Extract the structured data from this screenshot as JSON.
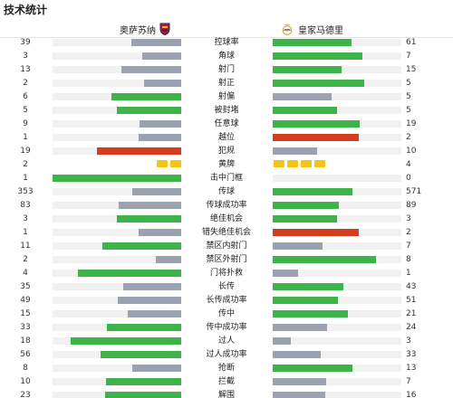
{
  "title": "技术统计",
  "home": {
    "name": "奥萨苏纳"
  },
  "away": {
    "name": "皇家马德里"
  },
  "colors": {
    "green": "#3db34a",
    "gray": "#9aa1b1",
    "red": "#d63d1e",
    "yellow": "#f6c416"
  },
  "stats": [
    {
      "label": "控球率",
      "home": "39",
      "away": "61",
      "home_pct": 0.39,
      "away_pct": 0.61,
      "home_color": "gray",
      "away_color": "green"
    },
    {
      "label": "角球",
      "home": "3",
      "away": "7",
      "home_pct": 0.3,
      "away_pct": 0.7,
      "home_color": "gray",
      "away_color": "green"
    },
    {
      "label": "射门",
      "home": "13",
      "away": "15",
      "home_pct": 0.464,
      "away_pct": 0.536,
      "home_color": "gray",
      "away_color": "green"
    },
    {
      "label": "射正",
      "home": "2",
      "away": "5",
      "home_pct": 0.286,
      "away_pct": 0.714,
      "home_color": "gray",
      "away_color": "green"
    },
    {
      "label": "射偏",
      "home": "6",
      "away": "5",
      "home_pct": 0.545,
      "away_pct": 0.455,
      "home_color": "green",
      "away_color": "gray"
    },
    {
      "label": "被封堵",
      "home": "5",
      "away": "5",
      "home_pct": 0.5,
      "away_pct": 0.5,
      "home_color": "green",
      "away_color": "green"
    },
    {
      "label": "任意球",
      "home": "9",
      "away": "19",
      "home_pct": 0.321,
      "away_pct": 0.679,
      "home_color": "gray",
      "away_color": "green"
    },
    {
      "label": "越位",
      "home": "1",
      "away": "2",
      "home_pct": 0.333,
      "away_pct": 0.667,
      "home_color": "gray",
      "away_color": "red"
    },
    {
      "label": "犯规",
      "home": "19",
      "away": "10",
      "home_pct": 0.655,
      "away_pct": 0.345,
      "home_color": "red",
      "away_color": "gray"
    },
    {
      "label": "黄牌",
      "home": "2",
      "away": "4",
      "home_cards": 2,
      "away_cards": 4
    },
    {
      "label": "击中门框",
      "home": "1",
      "away": "0",
      "home_pct": 1.0,
      "away_pct": 0.0,
      "home_color": "green",
      "away_color": "gray"
    },
    {
      "label": "传球",
      "home": "353",
      "away": "571",
      "home_pct": 0.382,
      "away_pct": 0.618,
      "home_color": "gray",
      "away_color": "green"
    },
    {
      "label": "传球成功率",
      "home": "83",
      "away": "89",
      "home_pct": 0.483,
      "away_pct": 0.517,
      "home_color": "gray",
      "away_color": "green"
    },
    {
      "label": "绝佳机会",
      "home": "3",
      "away": "3",
      "home_pct": 0.5,
      "away_pct": 0.5,
      "home_color": "green",
      "away_color": "green"
    },
    {
      "label": "错失绝佳机会",
      "home": "1",
      "away": "2",
      "home_pct": 0.333,
      "away_pct": 0.667,
      "home_color": "gray",
      "away_color": "red"
    },
    {
      "label": "禁区内射门",
      "home": "11",
      "away": "7",
      "home_pct": 0.611,
      "away_pct": 0.389,
      "home_color": "green",
      "away_color": "gray"
    },
    {
      "label": "禁区外射门",
      "home": "2",
      "away": "8",
      "home_pct": 0.2,
      "away_pct": 0.8,
      "home_color": "gray",
      "away_color": "green"
    },
    {
      "label": "门将扑救",
      "home": "4",
      "away": "1",
      "home_pct": 0.8,
      "away_pct": 0.2,
      "home_color": "green",
      "away_color": "gray"
    },
    {
      "label": "长传",
      "home": "35",
      "away": "43",
      "home_pct": 0.449,
      "away_pct": 0.551,
      "home_color": "gray",
      "away_color": "green"
    },
    {
      "label": "长传成功率",
      "home": "49",
      "away": "51",
      "home_pct": 0.49,
      "away_pct": 0.51,
      "home_color": "gray",
      "away_color": "green"
    },
    {
      "label": "传中",
      "home": "15",
      "away": "21",
      "home_pct": 0.417,
      "away_pct": 0.583,
      "home_color": "gray",
      "away_color": "green"
    },
    {
      "label": "传中成功率",
      "home": "33",
      "away": "24",
      "home_pct": 0.579,
      "away_pct": 0.421,
      "home_color": "green",
      "away_color": "gray"
    },
    {
      "label": "过人",
      "home": "18",
      "away": "3",
      "home_pct": 0.857,
      "away_pct": 0.143,
      "home_color": "green",
      "away_color": "gray"
    },
    {
      "label": "过人成功率",
      "home": "56",
      "away": "33",
      "home_pct": 0.629,
      "away_pct": 0.371,
      "home_color": "green",
      "away_color": "gray"
    },
    {
      "label": "抢断",
      "home": "8",
      "away": "13",
      "home_pct": 0.381,
      "away_pct": 0.619,
      "home_color": "gray",
      "away_color": "green"
    },
    {
      "label": "拦截",
      "home": "10",
      "away": "7",
      "home_pct": 0.588,
      "away_pct": 0.412,
      "home_color": "green",
      "away_color": "gray"
    },
    {
      "label": "解围",
      "home": "23",
      "away": "16",
      "home_pct": 0.59,
      "away_pct": 0.41,
      "home_color": "green",
      "away_color": "gray"
    }
  ]
}
